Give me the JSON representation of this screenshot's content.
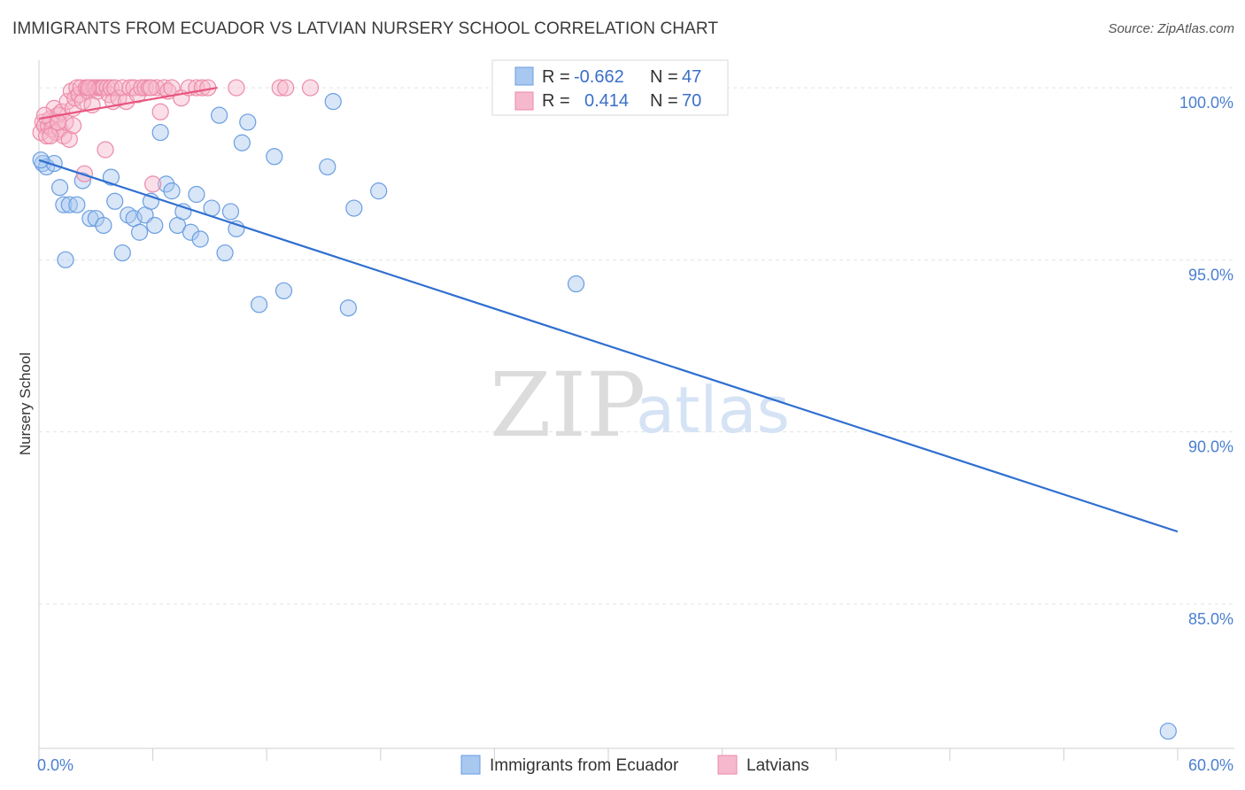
{
  "title": "IMMIGRANTS FROM ECUADOR VS LATVIAN NURSERY SCHOOL CORRELATION CHART",
  "source": "Source: ZipAtlas.com",
  "watermark": {
    "zip": "ZIP",
    "atlas": "atlas"
  },
  "colors": {
    "blue_fill": "#a8c8f0",
    "blue_stroke": "#6a9ee0",
    "blue_line": "#2f6fd0",
    "pink_fill": "#f6b8cc",
    "pink_stroke": "#ec8aa8",
    "pink_line": "#e8557e",
    "grid": "#e3e3e3",
    "tick_text": "#4a7fd0"
  },
  "chart_data": {
    "type": "scatter",
    "ylabel": "Nursery School",
    "xlim": [
      0,
      60
    ],
    "ylim": [
      80.8,
      100.8
    ],
    "yticks": [
      {
        "value": 100,
        "label": "100.0%"
      },
      {
        "value": 95,
        "label": "95.0%"
      },
      {
        "value": 90,
        "label": "90.0%"
      },
      {
        "value": 85,
        "label": "85.0%"
      }
    ],
    "xtick_labels": [
      {
        "value": 0,
        "label": "0.0%"
      },
      {
        "value": 60,
        "label": "60.0%"
      }
    ],
    "xtick_marks": [
      0,
      6,
      12,
      18,
      24,
      30,
      36,
      42,
      48,
      54,
      60
    ],
    "legend": [
      {
        "r_label": "R =",
        "r_value": "-0.662",
        "n_label": "N =",
        "n_value": "47",
        "series": "ecuador"
      },
      {
        "r_label": "R =",
        "r_value": "0.414",
        "n_label": "N =",
        "n_value": "70",
        "series": "latvians"
      }
    ],
    "series": [
      {
        "name": "Immigrants from Ecuador",
        "key": "ecuador",
        "trend": {
          "x": [
            0,
            60
          ],
          "y": [
            97.9,
            87.1
          ]
        },
        "points": [
          [
            0.2,
            97.8
          ],
          [
            0.4,
            97.7
          ],
          [
            0.8,
            97.8
          ],
          [
            1.1,
            97.1
          ],
          [
            1.3,
            96.6
          ],
          [
            1.6,
            96.6
          ],
          [
            2.0,
            96.6
          ],
          [
            1.4,
            95.0
          ],
          [
            2.3,
            97.3
          ],
          [
            2.7,
            96.2
          ],
          [
            3.0,
            96.2
          ],
          [
            3.4,
            96.0
          ],
          [
            3.8,
            97.4
          ],
          [
            4.0,
            96.7
          ],
          [
            4.4,
            95.2
          ],
          [
            4.7,
            96.3
          ],
          [
            5.0,
            96.2
          ],
          [
            5.3,
            95.8
          ],
          [
            5.6,
            96.3
          ],
          [
            5.9,
            96.7
          ],
          [
            6.1,
            96.0
          ],
          [
            6.4,
            98.7
          ],
          [
            6.7,
            97.2
          ],
          [
            7.0,
            97.0
          ],
          [
            7.3,
            96.0
          ],
          [
            7.6,
            96.4
          ],
          [
            8.0,
            95.8
          ],
          [
            8.3,
            96.9
          ],
          [
            8.5,
            95.6
          ],
          [
            9.1,
            96.5
          ],
          [
            9.5,
            99.2
          ],
          [
            9.8,
            95.2
          ],
          [
            10.1,
            96.4
          ],
          [
            10.4,
            95.9
          ],
          [
            10.7,
            98.4
          ],
          [
            11.0,
            99.0
          ],
          [
            11.6,
            93.7
          ],
          [
            12.4,
            98.0
          ],
          [
            12.9,
            94.1
          ],
          [
            15.2,
            97.7
          ],
          [
            15.5,
            99.6
          ],
          [
            16.3,
            93.6
          ],
          [
            16.6,
            96.5
          ],
          [
            17.9,
            97.0
          ],
          [
            28.3,
            94.3
          ],
          [
            59.5,
            81.3
          ],
          [
            0.1,
            97.9
          ]
        ]
      },
      {
        "name": "Latvians",
        "key": "latvians",
        "trend": {
          "x": [
            0,
            9.4
          ],
          "y": [
            99.1,
            100.0
          ]
        },
        "points": [
          [
            0.1,
            98.7
          ],
          [
            0.2,
            99.0
          ],
          [
            0.3,
            98.9
          ],
          [
            0.4,
            98.6
          ],
          [
            0.5,
            98.9
          ],
          [
            0.6,
            99.1
          ],
          [
            0.7,
            98.8
          ],
          [
            0.8,
            99.4
          ],
          [
            0.9,
            98.7
          ],
          [
            1.0,
            99.2
          ],
          [
            1.1,
            98.8
          ],
          [
            1.2,
            99.3
          ],
          [
            1.3,
            98.6
          ],
          [
            1.4,
            99.0
          ],
          [
            1.5,
            99.6
          ],
          [
            1.6,
            98.5
          ],
          [
            1.7,
            99.9
          ],
          [
            1.8,
            99.4
          ],
          [
            1.9,
            99.7
          ],
          [
            2.0,
            100.0
          ],
          [
            2.1,
            99.8
          ],
          [
            2.2,
            100.0
          ],
          [
            2.3,
            99.6
          ],
          [
            2.4,
            97.5
          ],
          [
            2.5,
            100.0
          ],
          [
            2.6,
            99.9
          ],
          [
            2.7,
            100.0
          ],
          [
            2.8,
            99.5
          ],
          [
            2.9,
            100.0
          ],
          [
            3.0,
            100.0
          ],
          [
            3.1,
            99.9
          ],
          [
            3.2,
            100.0
          ],
          [
            3.3,
            100.0
          ],
          [
            3.4,
            100.0
          ],
          [
            3.5,
            98.2
          ],
          [
            3.6,
            100.0
          ],
          [
            3.7,
            99.8
          ],
          [
            3.8,
            100.0
          ],
          [
            3.9,
            99.6
          ],
          [
            4.0,
            100.0
          ],
          [
            4.2,
            99.7
          ],
          [
            4.4,
            100.0
          ],
          [
            4.6,
            99.6
          ],
          [
            4.8,
            100.0
          ],
          [
            5.0,
            100.0
          ],
          [
            5.2,
            99.8
          ],
          [
            5.4,
            100.0
          ],
          [
            5.6,
            100.0
          ],
          [
            5.8,
            100.0
          ],
          [
            6.0,
            97.2
          ],
          [
            6.2,
            100.0
          ],
          [
            6.4,
            99.3
          ],
          [
            6.6,
            100.0
          ],
          [
            6.8,
            99.9
          ],
          [
            7.0,
            100.0
          ],
          [
            7.5,
            99.7
          ],
          [
            7.9,
            100.0
          ],
          [
            8.3,
            100.0
          ],
          [
            8.6,
            100.0
          ],
          [
            8.9,
            100.0
          ],
          [
            10.4,
            100.0
          ],
          [
            12.7,
            100.0
          ],
          [
            13.0,
            100.0
          ],
          [
            14.3,
            100.0
          ],
          [
            0.3,
            99.2
          ],
          [
            0.6,
            98.6
          ],
          [
            1.0,
            99.0
          ],
          [
            1.8,
            98.9
          ],
          [
            2.6,
            100.0
          ],
          [
            5.9,
            100.0
          ]
        ]
      }
    ]
  }
}
